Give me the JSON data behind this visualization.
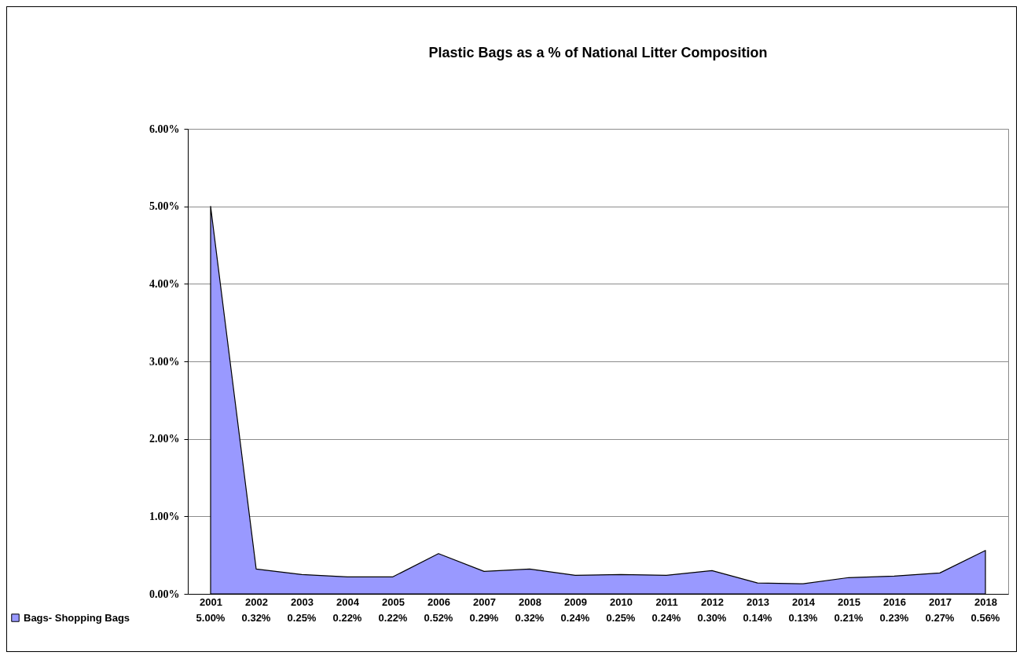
{
  "chart_data": {
    "type": "area",
    "title": "Plastic Bags as a % of National Litter Composition",
    "categories": [
      "2001",
      "2002",
      "2003",
      "2004",
      "2005",
      "2006",
      "2007",
      "2008",
      "2009",
      "2010",
      "2011",
      "2012",
      "2013",
      "2014",
      "2015",
      "2016",
      "2017",
      "2018"
    ],
    "series": [
      {
        "name": "Bags- Shopping Bags",
        "color": "#9999ff",
        "values": [
          5.0,
          0.32,
          0.25,
          0.22,
          0.22,
          0.52,
          0.29,
          0.32,
          0.24,
          0.25,
          0.24,
          0.3,
          0.14,
          0.13,
          0.21,
          0.23,
          0.27,
          0.56
        ],
        "value_labels": [
          "5.00%",
          "0.32%",
          "0.25%",
          "0.22%",
          "0.22%",
          "0.52%",
          "0.29%",
          "0.32%",
          "0.24%",
          "0.25%",
          "0.24%",
          "0.30%",
          "0.14%",
          "0.13%",
          "0.21%",
          "0.23%",
          "0.27%",
          "0.56%"
        ]
      }
    ],
    "ylim": [
      0,
      6
    ],
    "yticks": [
      {
        "value": 0,
        "label": "0.00%"
      },
      {
        "value": 1,
        "label": "1.00%"
      },
      {
        "value": 2,
        "label": "2.00%"
      },
      {
        "value": 3,
        "label": "3.00%"
      },
      {
        "value": 4,
        "label": "4.00%"
      },
      {
        "value": 5,
        "label": "5.00%"
      },
      {
        "value": 6,
        "label": "6.00%"
      }
    ],
    "grid": "y",
    "legend": "bottom"
  }
}
